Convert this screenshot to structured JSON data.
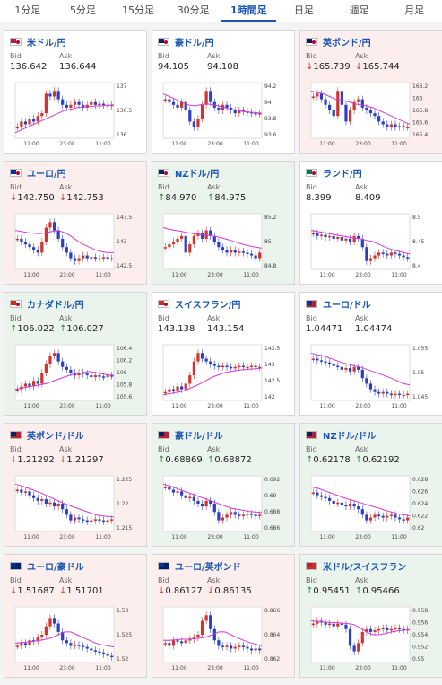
{
  "tabs": [
    {
      "label": "1分足",
      "active": false
    },
    {
      "label": "5分足",
      "active": false
    },
    {
      "label": "15分足",
      "active": false
    },
    {
      "label": "30分足",
      "active": false
    },
    {
      "label": "1時間足",
      "active": true
    },
    {
      "label": "日足",
      "active": false
    },
    {
      "label": "週足",
      "active": false
    },
    {
      "label": "月足",
      "active": false
    }
  ],
  "bid_label": "Bid",
  "ask_label": "Ask",
  "arrows": {
    "up": "↑",
    "down": "↓"
  },
  "colors": {
    "up_candle": "#d0342c",
    "down_candle": "#2a3fc4",
    "ma": "#d43bd4",
    "link": "#1a56b0",
    "up_bg": "#eaf3ec",
    "down_bg": "#fdeeee"
  },
  "x_ticks": [
    "11:00",
    "23:00",
    "11:00"
  ],
  "pairs": [
    {
      "name": "米ドル/円",
      "bid": "136.642",
      "ask": "136.644",
      "trend": "none",
      "flag": "us-jp",
      "y_ticks": [
        "137",
        "136.5",
        "136"
      ],
      "shape": [
        0.2,
        0.3,
        0.25,
        0.35,
        0.3,
        0.4,
        0.45,
        0.8,
        0.75,
        0.85,
        0.7,
        0.6,
        0.55,
        0.6,
        0.65,
        0.6,
        0.55,
        0.6,
        0.65,
        0.6,
        0.62,
        0.6,
        0.58,
        0.6
      ],
      "ma": [
        0.1,
        0.15,
        0.2,
        0.25,
        0.3,
        0.35,
        0.4,
        0.45,
        0.5,
        0.52,
        0.55,
        0.56,
        0.57,
        0.58,
        0.58,
        0.59,
        0.6
      ]
    },
    {
      "name": "豪ドル/円",
      "bid": "94.105",
      "ask": "94.108",
      "trend": "none",
      "flag": "au-jp",
      "y_ticks": [
        "94.2",
        "94",
        "93.8",
        "93.6"
      ],
      "shape": [
        0.7,
        0.65,
        0.6,
        0.55,
        0.65,
        0.5,
        0.3,
        0.2,
        0.35,
        0.6,
        0.85,
        0.65,
        0.55,
        0.5,
        0.6,
        0.55,
        0.5,
        0.45,
        0.5,
        0.48,
        0.47,
        0.45,
        0.44,
        0.45
      ],
      "ma": [
        0.8,
        0.75,
        0.7,
        0.65,
        0.6,
        0.58,
        0.6,
        0.62,
        0.6,
        0.58,
        0.55,
        0.52,
        0.5,
        0.48,
        0.47,
        0.46,
        0.45
      ]
    },
    {
      "name": "英ポンド/円",
      "bid": "165.739",
      "ask": "165.744",
      "trend": "down",
      "flag": "uk-jp",
      "y_ticks": [
        "166.2",
        "166",
        "165.8",
        "165.6",
        "165.4"
      ],
      "shape": [
        0.75,
        0.8,
        0.7,
        0.6,
        0.5,
        0.4,
        0.85,
        0.6,
        0.3,
        0.5,
        0.65,
        0.7,
        0.55,
        0.5,
        0.45,
        0.4,
        0.3,
        0.25,
        0.2,
        0.25,
        0.2,
        0.22,
        0.2,
        0.2
      ],
      "ma": [
        0.85,
        0.82,
        0.8,
        0.75,
        0.7,
        0.68,
        0.66,
        0.62,
        0.6,
        0.58,
        0.55,
        0.5,
        0.45,
        0.4,
        0.35,
        0.3,
        0.25
      ]
    },
    {
      "name": "ユーロ/円",
      "bid": "142.750",
      "ask": "142.753",
      "trend": "down",
      "flag": "eu-jp",
      "y_ticks": [
        "143.5",
        "143",
        "142.5"
      ],
      "shape": [
        0.55,
        0.5,
        0.45,
        0.4,
        0.35,
        0.3,
        0.5,
        0.75,
        0.85,
        0.7,
        0.55,
        0.4,
        0.3,
        0.2,
        0.15,
        0.2,
        0.25,
        0.2,
        0.22,
        0.2,
        0.2,
        0.22,
        0.2,
        0.2
      ],
      "ma": [
        0.7,
        0.68,
        0.66,
        0.65,
        0.64,
        0.66,
        0.68,
        0.7,
        0.66,
        0.6,
        0.52,
        0.45,
        0.4,
        0.35,
        0.32,
        0.3,
        0.3
      ]
    },
    {
      "name": "NZドル/円",
      "bid": "84.970",
      "ask": "84.975",
      "trend": "up",
      "flag": "nz-jp",
      "y_ticks": [
        "85.2",
        "85",
        "84.8"
      ],
      "shape": [
        0.4,
        0.45,
        0.5,
        0.55,
        0.6,
        0.3,
        0.45,
        0.6,
        0.65,
        0.55,
        0.7,
        0.6,
        0.5,
        0.4,
        0.35,
        0.3,
        0.35,
        0.3,
        0.32,
        0.3,
        0.28,
        0.25,
        0.2,
        0.3
      ],
      "ma": [
        0.75,
        0.72,
        0.7,
        0.68,
        0.66,
        0.64,
        0.62,
        0.62,
        0.6,
        0.58,
        0.55,
        0.52,
        0.48,
        0.45,
        0.42,
        0.4,
        0.38
      ]
    },
    {
      "name": "ランド/円",
      "bid": "8.399",
      "ask": "8.409",
      "trend": "none",
      "flag": "za-jp",
      "y_ticks": [
        "8.5",
        "8.45",
        "8.4"
      ],
      "shape": [
        0.65,
        0.6,
        0.62,
        0.58,
        0.6,
        0.55,
        0.58,
        0.52,
        0.55,
        0.5,
        0.6,
        0.55,
        0.4,
        0.15,
        0.2,
        0.25,
        0.3,
        0.28,
        0.25,
        0.3,
        0.28,
        0.25,
        0.22,
        0.2
      ],
      "ma": [
        0.7,
        0.68,
        0.66,
        0.64,
        0.62,
        0.6,
        0.58,
        0.56,
        0.55,
        0.52,
        0.5,
        0.45,
        0.4,
        0.36,
        0.33,
        0.3,
        0.28
      ]
    },
    {
      "name": "カナダドル/円",
      "bid": "106.022",
      "ask": "106.027",
      "trend": "up",
      "flag": "ca-jp",
      "y_ticks": [
        "106.4",
        "106.2",
        "106",
        "105.8",
        "105.6"
      ],
      "shape": [
        0.2,
        0.25,
        0.3,
        0.25,
        0.35,
        0.3,
        0.5,
        0.65,
        0.8,
        0.85,
        0.7,
        0.6,
        0.55,
        0.5,
        0.45,
        0.5,
        0.48,
        0.45,
        0.42,
        0.45,
        0.43,
        0.42,
        0.45,
        0.44
      ],
      "ma": [
        0.2,
        0.22,
        0.24,
        0.26,
        0.28,
        0.3,
        0.34,
        0.38,
        0.42,
        0.46,
        0.48,
        0.5,
        0.52,
        0.5,
        0.48,
        0.46,
        0.45
      ]
    },
    {
      "name": "スイスフラン/円",
      "bid": "143.138",
      "ask": "143.154",
      "trend": "none",
      "flag": "ch-jp",
      "y_ticks": [
        "143.5",
        "143",
        "142.5",
        "142"
      ],
      "shape": [
        0.15,
        0.2,
        0.18,
        0.25,
        0.2,
        0.3,
        0.45,
        0.7,
        0.85,
        0.75,
        0.7,
        0.65,
        0.62,
        0.6,
        0.62,
        0.6,
        0.58,
        0.6,
        0.62,
        0.6,
        0.6,
        0.62,
        0.6,
        0.6
      ],
      "ma": [
        0.1,
        0.12,
        0.14,
        0.16,
        0.2,
        0.25,
        0.3,
        0.36,
        0.42,
        0.46,
        0.5,
        0.52,
        0.54,
        0.55,
        0.56,
        0.57,
        0.58
      ]
    },
    {
      "name": "ユーロ/ドル",
      "bid": "1.04471",
      "ask": "1.04474",
      "trend": "none",
      "flag": "eu-us",
      "y_ticks": [
        "1.055",
        "1.05",
        "1.045"
      ],
      "shape": [
        0.75,
        0.72,
        0.7,
        0.68,
        0.65,
        0.62,
        0.6,
        0.55,
        0.58,
        0.52,
        0.6,
        0.55,
        0.4,
        0.3,
        0.2,
        0.15,
        0.12,
        0.15,
        0.12,
        0.1,
        0.12,
        0.1,
        0.1,
        0.12
      ],
      "ma": [
        0.85,
        0.82,
        0.8,
        0.76,
        0.72,
        0.68,
        0.65,
        0.62,
        0.6,
        0.56,
        0.52,
        0.48,
        0.44,
        0.4,
        0.35,
        0.3,
        0.28
      ]
    },
    {
      "name": "英ポンド/ドル",
      "bid": "1.21292",
      "ask": "1.21297",
      "trend": "down",
      "flag": "uk-us",
      "y_ticks": [
        "1.225",
        "1.22",
        "1.215"
      ],
      "shape": [
        0.75,
        0.7,
        0.72,
        0.65,
        0.6,
        0.55,
        0.58,
        0.5,
        0.52,
        0.45,
        0.5,
        0.4,
        0.3,
        0.2,
        0.25,
        0.22,
        0.2,
        0.18,
        0.2,
        0.22,
        0.2,
        0.18,
        0.2,
        0.22
      ],
      "ma": [
        0.85,
        0.82,
        0.78,
        0.74,
        0.7,
        0.65,
        0.6,
        0.55,
        0.5,
        0.46,
        0.42,
        0.38,
        0.34,
        0.3,
        0.28,
        0.27,
        0.26
      ]
    },
    {
      "name": "豪ドル/ドル",
      "bid": "0.68869",
      "ask": "0.68872",
      "trend": "up",
      "flag": "au-us",
      "y_ticks": [
        "0.692",
        "0.69",
        "0.688",
        "0.686"
      ],
      "shape": [
        0.8,
        0.75,
        0.7,
        0.72,
        0.65,
        0.6,
        0.62,
        0.55,
        0.5,
        0.45,
        0.55,
        0.5,
        0.35,
        0.2,
        0.25,
        0.3,
        0.35,
        0.3,
        0.28,
        0.3,
        0.32,
        0.3,
        0.28,
        0.3
      ],
      "ma": [
        0.85,
        0.82,
        0.78,
        0.74,
        0.7,
        0.66,
        0.62,
        0.58,
        0.54,
        0.5,
        0.46,
        0.42,
        0.4,
        0.38,
        0.36,
        0.35,
        0.34
      ]
    },
    {
      "name": "NZドル/ドル",
      "bid": "0.62178",
      "ask": "0.62192",
      "trend": "up",
      "flag": "nz-us",
      "y_ticks": [
        "0.628",
        "0.626",
        "0.624",
        "0.622",
        "0.62"
      ],
      "shape": [
        0.7,
        0.65,
        0.62,
        0.6,
        0.55,
        0.5,
        0.52,
        0.48,
        0.45,
        0.5,
        0.45,
        0.4,
        0.3,
        0.2,
        0.25,
        0.3,
        0.28,
        0.25,
        0.28,
        0.3,
        0.25,
        0.22,
        0.2,
        0.25
      ],
      "ma": [
        0.8,
        0.78,
        0.74,
        0.7,
        0.66,
        0.62,
        0.58,
        0.55,
        0.52,
        0.48,
        0.45,
        0.42,
        0.38,
        0.35,
        0.32,
        0.3,
        0.28
      ]
    },
    {
      "name": "ユーロ/豪ドル",
      "bid": "1.51687",
      "ask": "1.51701",
      "trend": "down",
      "flag": "eu-au",
      "y_ticks": [
        "1.53",
        "1.525",
        "1.52"
      ],
      "shape": [
        0.3,
        0.35,
        0.32,
        0.4,
        0.38,
        0.45,
        0.5,
        0.65,
        0.8,
        0.7,
        0.55,
        0.4,
        0.35,
        0.3,
        0.32,
        0.3,
        0.28,
        0.25,
        0.22,
        0.2,
        0.18,
        0.15,
        0.12,
        0.1
      ],
      "ma": [
        0.35,
        0.36,
        0.37,
        0.38,
        0.4,
        0.42,
        0.45,
        0.5,
        0.55,
        0.55,
        0.5,
        0.45,
        0.4,
        0.35,
        0.32,
        0.3,
        0.28
      ]
    },
    {
      "name": "ユーロ/英ポンド",
      "bid": "0.86127",
      "ask": "0.86135",
      "trend": "down",
      "flag": "eu-uk",
      "y_ticks": [
        "0.866",
        "0.864",
        "0.862"
      ],
      "shape": [
        0.35,
        0.3,
        0.4,
        0.38,
        0.35,
        0.4,
        0.42,
        0.45,
        0.5,
        0.75,
        0.85,
        0.6,
        0.4,
        0.3,
        0.28,
        0.3,
        0.25,
        0.28,
        0.3,
        0.28,
        0.25,
        0.22,
        0.25,
        0.22
      ],
      "ma": [
        0.4,
        0.4,
        0.41,
        0.42,
        0.42,
        0.43,
        0.44,
        0.46,
        0.5,
        0.55,
        0.55,
        0.5,
        0.45,
        0.4,
        0.36,
        0.33,
        0.3
      ]
    },
    {
      "name": "米ドル/スイスフラン",
      "bid": "0.95451",
      "ask": "0.95466",
      "trend": "up",
      "flag": "us-ch",
      "y_ticks": [
        "0.958",
        "0.956",
        "0.954",
        "0.952",
        "0.95"
      ],
      "shape": [
        0.7,
        0.75,
        0.72,
        0.68,
        0.7,
        0.65,
        0.7,
        0.68,
        0.6,
        0.3,
        0.2,
        0.35,
        0.55,
        0.6,
        0.55,
        0.58,
        0.6,
        0.62,
        0.58,
        0.6,
        0.62,
        0.6,
        0.58,
        0.6
      ],
      "ma": [
        0.75,
        0.74,
        0.73,
        0.72,
        0.72,
        0.71,
        0.7,
        0.68,
        0.62,
        0.55,
        0.5,
        0.5,
        0.52,
        0.55,
        0.57,
        0.58,
        0.59
      ]
    }
  ]
}
